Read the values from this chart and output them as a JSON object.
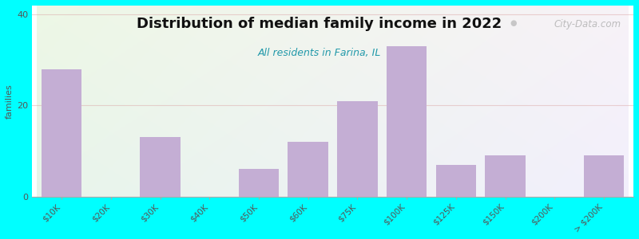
{
  "title": "Distribution of median family income in 2022",
  "subtitle": "All residents in Farina, IL",
  "ylabel": "families",
  "background_color": "#00FFFF",
  "bar_color": "#C4AED4",
  "categories": [
    "$10K",
    "$20K",
    "$30K",
    "$40K",
    "$50K",
    "$60K",
    "$75K",
    "$100K",
    "$125K",
    "$150K",
    "$200K",
    "> $200K"
  ],
  "values": [
    28,
    0,
    13,
    0,
    6,
    12,
    21,
    33,
    7,
    9,
    0,
    9
  ],
  "ylim": [
    0,
    42
  ],
  "yticks": [
    0,
    20,
    40
  ],
  "watermark": "City-Data.com",
  "grid_color": "#ddaaaa",
  "grid_alpha": 0.5,
  "title_fontsize": 13,
  "subtitle_fontsize": 9,
  "subtitle_color": "#2299AA"
}
